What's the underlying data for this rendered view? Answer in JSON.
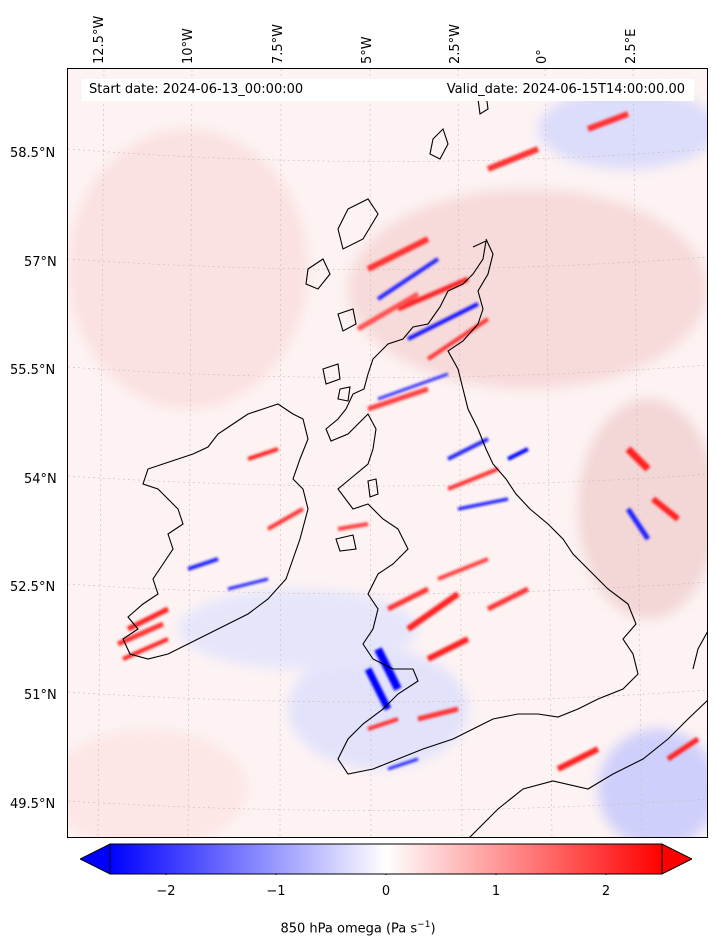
{
  "map": {
    "start_date": "Start date: 2024-06-13_00:00:00",
    "valid_date": "Valid_date: 2024-06-15T14:00:00.00",
    "longitude_labels": [
      "12.5°W",
      "10°W",
      "7.5°W",
      "5°W",
      "2.5°W",
      "0°",
      "2.5°E"
    ],
    "latitude_labels": [
      "58.5°N",
      "57°N",
      "55.5°N",
      "54°N",
      "52.5°N",
      "51°N",
      "49.5°N"
    ]
  },
  "colorbar": {
    "label": "850 hPa omega (Pa s",
    "label_sup": "−1",
    "label_end": ")",
    "ticks": [
      "−2",
      "−1",
      "0",
      "1",
      "2"
    ],
    "min_color": "#0000ff",
    "mid_color": "#ffffff",
    "max_color": "#ff0000"
  },
  "chart_data": {
    "type": "heatmap",
    "variable": "850 hPa omega",
    "units": "Pa s^-1",
    "clim": [
      -2.6,
      2.6
    ],
    "colormap": "bwr",
    "extend": "both",
    "colorbar_ticks": [
      -2,
      -1,
      0,
      1,
      2
    ],
    "x_ticks_lon": [
      -12.5,
      -10,
      -7.5,
      -5,
      -2.5,
      0,
      2.5
    ],
    "y_ticks_lat": [
      58.5,
      57,
      55.5,
      54,
      52.5,
      51,
      49.5
    ]
  }
}
